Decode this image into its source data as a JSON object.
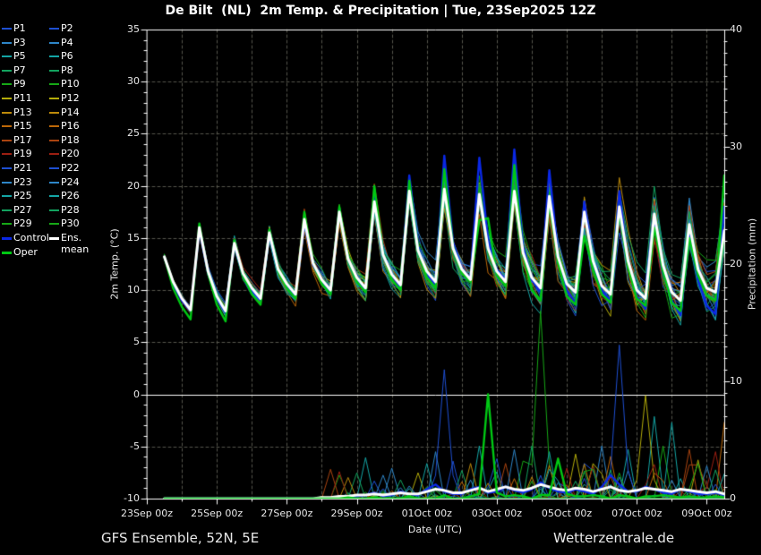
{
  "title": "De Bilt  (NL)  2m Temp. & Precipitation | Tue, 23Sep2025 12Z",
  "footer": {
    "left": "GFS Ensemble, 52N, 5E",
    "right": "Wetterzentrale.de"
  },
  "axes": {
    "temp": {
      "title": "2m Temp. (°C)",
      "ticks": [
        35,
        30,
        25,
        20,
        15,
        10,
        5,
        0,
        -5,
        -10
      ],
      "min": -10,
      "max": 35
    },
    "precip": {
      "title": "Precipitation (mm)",
      "ticks": [
        40,
        30,
        20,
        10,
        0
      ],
      "min": 0,
      "max": 40
    },
    "x": {
      "title": "Date (UTC)",
      "tick_labels": [
        "23Sep 00z",
        "25Sep 00z",
        "27Sep 00z",
        "29Sep 00z",
        "01Oct 00z",
        "03Oct 00z",
        "05Oct 00z",
        "07Oct 00z",
        "09Oct 00z"
      ],
      "start": "23Sep 00z",
      "end": "09Oct 12z",
      "span_days": 16.5
    }
  },
  "legend": {
    "entries": [
      {
        "label": "P1",
        "color": "#1e4fd2"
      },
      {
        "label": "P2",
        "color": "#1e4fd2"
      },
      {
        "label": "P3",
        "color": "#2e86c8"
      },
      {
        "label": "P4",
        "color": "#2e86c8"
      },
      {
        "label": "P5",
        "color": "#14a5a5"
      },
      {
        "label": "P6",
        "color": "#14a5a5"
      },
      {
        "label": "P7",
        "color": "#12a35f"
      },
      {
        "label": "P8",
        "color": "#12a35f"
      },
      {
        "label": "P9",
        "color": "#16a816"
      },
      {
        "label": "P10",
        "color": "#16a816"
      },
      {
        "label": "P11",
        "color": "#b4ac0a"
      },
      {
        "label": "P12",
        "color": "#b4ac0a"
      },
      {
        "label": "P13",
        "color": "#bd8a0a"
      },
      {
        "label": "P14",
        "color": "#bd8a0a"
      },
      {
        "label": "P15",
        "color": "#bd6808"
      },
      {
        "label": "P16",
        "color": "#bd6808"
      },
      {
        "label": "P17",
        "color": "#aa4410"
      },
      {
        "label": "P18",
        "color": "#aa4410"
      },
      {
        "label": "P19",
        "color": "#9c1f12"
      },
      {
        "label": "P20",
        "color": "#9c1f12"
      },
      {
        "label": "P21",
        "color": "#1e4fd2"
      },
      {
        "label": "P22",
        "color": "#1e4fd2"
      },
      {
        "label": "P23",
        "color": "#2e86c8"
      },
      {
        "label": "P24",
        "color": "#2e86c8"
      },
      {
        "label": "P25",
        "color": "#14a5a5"
      },
      {
        "label": "P26",
        "color": "#14a5a5"
      },
      {
        "label": "P27",
        "color": "#12a35f"
      },
      {
        "label": "P28",
        "color": "#12a35f"
      },
      {
        "label": "P29",
        "color": "#16a816"
      },
      {
        "label": "P30",
        "color": "#16a816"
      },
      {
        "label": "Control",
        "color": "#0a28e6",
        "thick": true
      },
      {
        "label": "Ens. mean",
        "color": "#ffffff",
        "thick": true
      },
      {
        "label": "Oper",
        "color": "#00c814",
        "thick": true
      }
    ]
  },
  "chart_data": {
    "type": "line",
    "title": "GFS ensemble meteogram: 2m temperature (left axis) and 6-hourly precipitation (right axis)",
    "time": {
      "start": "23Sep2025 12Z",
      "step_hours": 6,
      "n_points": 65,
      "end": "09Oct2025 12Z"
    },
    "temp_unit": "°C",
    "precip_unit": "mm",
    "temp_axis_range": [
      -10,
      35
    ],
    "precip_axis_range": [
      0,
      40
    ],
    "zero_line_c": 0,
    "series": [
      {
        "name": "Ens. mean",
        "color": "#ffffff",
        "width": 3,
        "temp": [
          13.2,
          10.8,
          9.2,
          8.1,
          16.0,
          11.8,
          9.4,
          8.0,
          14.5,
          11.6,
          10.2,
          9.2,
          15.5,
          12.0,
          10.6,
          9.6,
          16.8,
          12.6,
          11.0,
          10.0,
          17.5,
          13.0,
          11.2,
          10.2,
          18.5,
          13.4,
          11.5,
          10.5,
          19.5,
          13.8,
          11.8,
          10.8,
          19.7,
          14.0,
          12.0,
          11.0,
          19.2,
          14.0,
          11.8,
          10.8,
          19.5,
          13.6,
          11.2,
          10.2,
          19.0,
          13.2,
          10.6,
          9.8,
          17.5,
          12.8,
          10.4,
          9.6,
          18.0,
          12.8,
          10.0,
          9.2,
          17.3,
          12.4,
          9.8,
          9.0,
          16.3,
          12.0,
          10.2,
          9.8,
          15.7
        ],
        "precip": [
          0,
          0,
          0,
          0,
          0,
          0,
          0,
          0,
          0,
          0,
          0,
          0,
          0,
          0,
          0,
          0,
          0,
          0,
          0.1,
          0.1,
          0.2,
          0.2,
          0.3,
          0.3,
          0.4,
          0.3,
          0.4,
          0.5,
          0.4,
          0.4,
          0.6,
          0.8,
          0.7,
          0.5,
          0.5,
          0.7,
          0.9,
          0.6,
          0.8,
          1.0,
          0.8,
          0.7,
          0.9,
          1.2,
          1.0,
          0.8,
          0.7,
          0.9,
          0.8,
          0.6,
          0.8,
          1.0,
          0.7,
          0.6,
          0.7,
          0.9,
          0.8,
          0.7,
          0.6,
          0.8,
          0.7,
          0.6,
          0.5,
          0.6,
          0.4
        ]
      },
      {
        "name": "Control",
        "color": "#0a28e6",
        "width": 2.4,
        "temp": [
          13.2,
          10.6,
          9.0,
          8.0,
          15.8,
          11.6,
          9.2,
          7.8,
          14.3,
          11.4,
          10.0,
          9.0,
          15.3,
          11.8,
          10.4,
          9.4,
          16.5,
          12.4,
          10.8,
          9.8,
          17.8,
          13.0,
          11.0,
          10.0,
          19.2,
          13.6,
          11.4,
          10.3,
          21.0,
          14.2,
          11.6,
          10.5,
          22.9,
          14.6,
          12.0,
          11.2,
          22.7,
          14.8,
          12.0,
          11.0,
          23.5,
          14.2,
          11.0,
          9.8,
          21.5,
          13.4,
          10.0,
          8.8,
          18.5,
          12.6,
          10.0,
          9.0,
          19.5,
          12.4,
          9.4,
          8.2,
          16.5,
          11.6,
          9.0,
          7.6,
          15.2,
          11.0,
          8.5,
          7.7,
          18.0
        ],
        "precip": [
          0,
          0,
          0,
          0,
          0,
          0,
          0,
          0,
          0,
          0,
          0,
          0,
          0,
          0,
          0,
          0,
          0,
          0,
          0,
          0,
          0.2,
          0.1,
          0.2,
          0.3,
          0.5,
          0.2,
          0.3,
          0.6,
          0.4,
          0.3,
          0.8,
          1.2,
          0.6,
          0.4,
          0.4,
          0.8,
          1.0,
          0.5,
          0.6,
          1.0,
          0.7,
          0.5,
          0.8,
          1.4,
          0.9,
          0.6,
          0.5,
          0.8,
          0.6,
          0.4,
          1.0,
          2.0,
          1.2,
          0.6,
          0.6,
          1.0,
          0.8,
          0.5,
          0.4,
          0.8,
          0.6,
          0.4,
          0.4,
          0.5,
          0.3
        ]
      },
      {
        "name": "Oper",
        "color": "#00c814",
        "width": 2.4,
        "temp": [
          13.2,
          10.2,
          8.4,
          7.2,
          16.4,
          11.6,
          8.6,
          7.0,
          14.8,
          11.4,
          9.6,
          8.6,
          15.8,
          11.8,
          10.2,
          9.2,
          17.5,
          12.6,
          10.6,
          9.6,
          18.0,
          13.0,
          10.8,
          9.8,
          20.0,
          13.6,
          11.0,
          10.0,
          20.5,
          14.0,
          11.2,
          10.2,
          21.6,
          14.2,
          11.6,
          10.8,
          16.7,
          16.9,
          11.4,
          10.4,
          22.0,
          13.4,
          10.0,
          9.0,
          18.5,
          12.6,
          9.4,
          8.6,
          15.2,
          12.0,
          9.6,
          8.8,
          17.5,
          12.2,
          9.2,
          8.5,
          16.0,
          11.8,
          8.8,
          8.0,
          15.0,
          11.4,
          9.5,
          9.0,
          21.0
        ],
        "precip": [
          0,
          0,
          0,
          0,
          0,
          0,
          0,
          0,
          0,
          0,
          0,
          0,
          0,
          0,
          0,
          0,
          0,
          0,
          0,
          0,
          0,
          0.1,
          0,
          0,
          0.1,
          0,
          0,
          0,
          0.2,
          0,
          0,
          0,
          0.3,
          0,
          0,
          0.2,
          0.4,
          8.9,
          0.5,
          0.2,
          0.3,
          0.2,
          0,
          0.3,
          0.3,
          3.4,
          0.4,
          0.2,
          0.2,
          0.3,
          0.2,
          0,
          0.3,
          0.2,
          0,
          0.2,
          0.2,
          0.3,
          0.2,
          0.1,
          0.2,
          0.1,
          0.1,
          0.2,
          0.1
        ]
      }
    ],
    "ensemble": {
      "member_count": 30,
      "color_cycle": [
        "#1e4fd2",
        "#2e86c8",
        "#14a5a5",
        "#12a35f",
        "#16a816",
        "#b4ac0a",
        "#bd8a0a",
        "#bd6808",
        "#aa4410",
        "#9c1f12"
      ],
      "spread_halfwidth_c": {
        "start": 0.5,
        "per_step": 0.075,
        "max": 4.6
      },
      "precip_events": [
        [
          19,
          2.5,
          17
        ],
        [
          20,
          2.0,
          9
        ],
        [
          20,
          2.3,
          19
        ],
        [
          21,
          1.8,
          13
        ],
        [
          22,
          2.2,
          7
        ],
        [
          23,
          3.5,
          5
        ],
        [
          24,
          1.5,
          21
        ],
        [
          25,
          2.0,
          23
        ],
        [
          26,
          2.6,
          3
        ],
        [
          27,
          1.6,
          27
        ],
        [
          29,
          2.2,
          11
        ],
        [
          30,
          3.0,
          25
        ],
        [
          31,
          4.0,
          4
        ],
        [
          32,
          11.0,
          22
        ],
        [
          33,
          3.2,
          2
        ],
        [
          34,
          2.4,
          8
        ],
        [
          35,
          3.0,
          14
        ],
        [
          36,
          4.5,
          6
        ],
        [
          38,
          3.4,
          2
        ],
        [
          39,
          3.0,
          18
        ],
        [
          40,
          4.2,
          24
        ],
        [
          41,
          3.2,
          10
        ],
        [
          42,
          4.5,
          28
        ],
        [
          43,
          16.0,
          10
        ],
        [
          44,
          4.0,
          26
        ],
        [
          45,
          3.5,
          16
        ],
        [
          46,
          2.6,
          20
        ],
        [
          47,
          3.8,
          12
        ],
        [
          48,
          3.0,
          1
        ],
        [
          49,
          2.5,
          29
        ],
        [
          50,
          4.5,
          3
        ],
        [
          51,
          3.6,
          15
        ],
        [
          52,
          13.1,
          21
        ],
        [
          53,
          4.2,
          5
        ],
        [
          55,
          8.8,
          11
        ],
        [
          56,
          7.0,
          5
        ],
        [
          57,
          4.5,
          9
        ],
        [
          58,
          6.5,
          26
        ],
        [
          60,
          4.2,
          17
        ],
        [
          61,
          3.0,
          30
        ],
        [
          61,
          3.3,
          12
        ],
        [
          62,
          2.8,
          23
        ],
        [
          63,
          4.0,
          19
        ],
        [
          64,
          6.5,
          15
        ]
      ]
    }
  }
}
